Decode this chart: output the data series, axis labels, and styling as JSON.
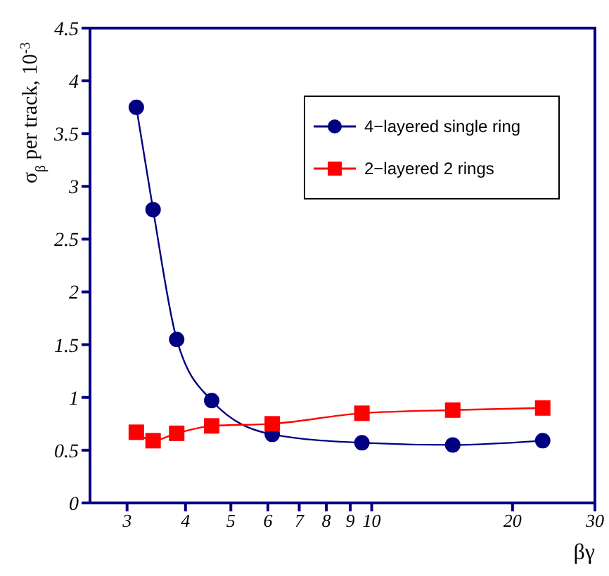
{
  "chart_data": {
    "type": "line",
    "xlabel": "βγ",
    "ylabel": "σ$_{β}$ per track, 10$^{-3}$",
    "x": [
      3.14,
      3.41,
      3.83,
      4.55,
      6.13,
      9.53,
      14.9,
      23.2
    ],
    "series": [
      {
        "name": "4−layered single ring",
        "color": "#000080",
        "marker": "circle",
        "values": [
          3.75,
          2.78,
          1.55,
          0.97,
          0.65,
          0.57,
          0.55,
          0.59
        ]
      },
      {
        "name": "2−layered 2 rings",
        "color": "#ff0000",
        "marker": "square",
        "values": [
          0.67,
          0.59,
          0.66,
          0.73,
          0.75,
          0.85,
          0.88,
          0.9
        ]
      }
    ],
    "log": "x",
    "xlim": [
      2.5,
      30
    ],
    "xticks": [
      3,
      4,
      5,
      6,
      7,
      8,
      9,
      10,
      20,
      30
    ],
    "ylim": [
      0,
      4.5
    ],
    "yticks": [
      0,
      0.5,
      1,
      1.5,
      2,
      2.5,
      3,
      3.5,
      4,
      4.5
    ],
    "legend": "top right"
  }
}
